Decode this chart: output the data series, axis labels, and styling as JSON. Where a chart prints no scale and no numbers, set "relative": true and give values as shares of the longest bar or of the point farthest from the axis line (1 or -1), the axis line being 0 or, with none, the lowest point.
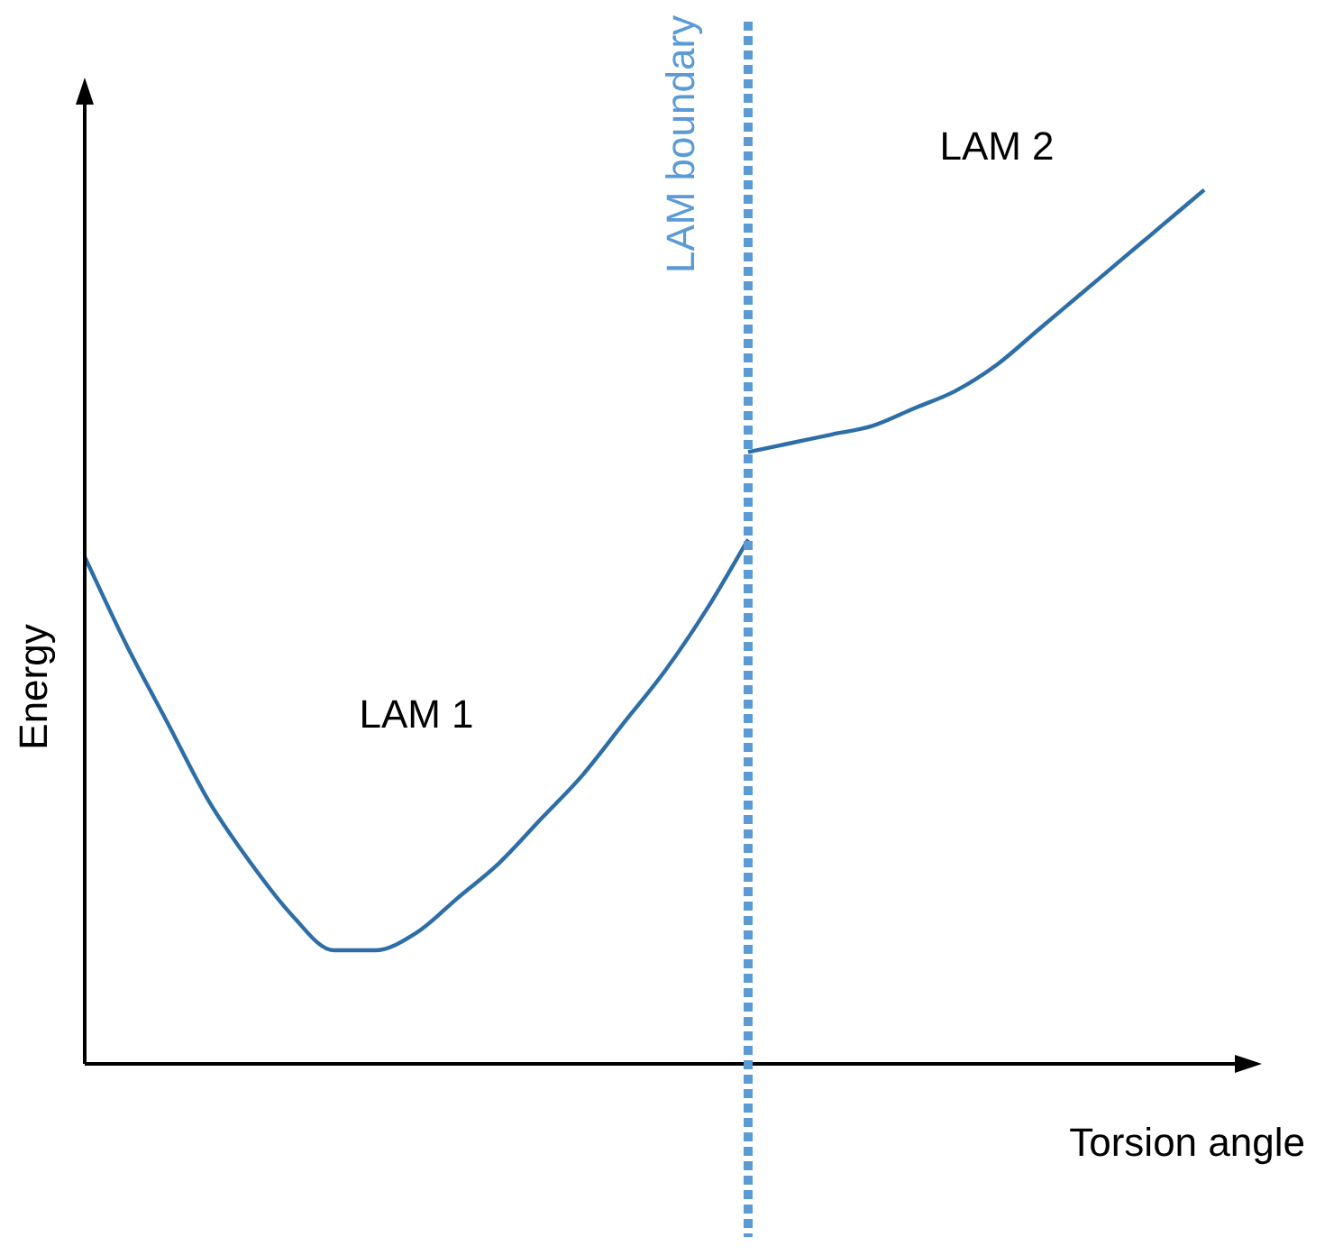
{
  "chart_data": {
    "type": "line",
    "relative": true,
    "xlabel": "Torsion angle",
    "ylabel": "Energy",
    "categories": [
      null,
      null,
      null,
      null,
      null,
      null,
      null,
      null,
      null,
      null,
      null,
      null,
      null,
      null,
      null,
      null,
      null,
      null,
      null,
      null,
      null,
      null,
      null,
      null,
      null,
      null,
      null,
      null,
      null
    ],
    "series": [
      {
        "name": "LAM 1",
        "color": "#2e6ea6",
        "values": [
          0.58,
          0.48,
          0.39,
          0.3,
          0.23,
          0.17,
          0.13,
          0.13,
          0.15,
          0.19,
          0.23,
          0.28,
          0.33,
          0.39,
          0.45,
          0.52,
          0.6,
          null,
          null,
          null,
          null,
          null,
          null,
          null,
          null,
          null,
          null,
          null,
          null
        ]
      },
      {
        "name": "LAM 2",
        "color": "#2e6ea6",
        "values": [
          null,
          null,
          null,
          null,
          null,
          null,
          null,
          null,
          null,
          null,
          null,
          null,
          null,
          null,
          null,
          null,
          0.7,
          0.71,
          0.72,
          0.73,
          0.75,
          0.77,
          0.8,
          0.84,
          0.88,
          0.92,
          0.96,
          1.0,
          null
        ]
      }
    ],
    "annotations": [
      "LAM boundary"
    ],
    "grid": false,
    "legend": false,
    "marker": "none",
    "line_style": "solid",
    "tick_labels": false
  }
}
